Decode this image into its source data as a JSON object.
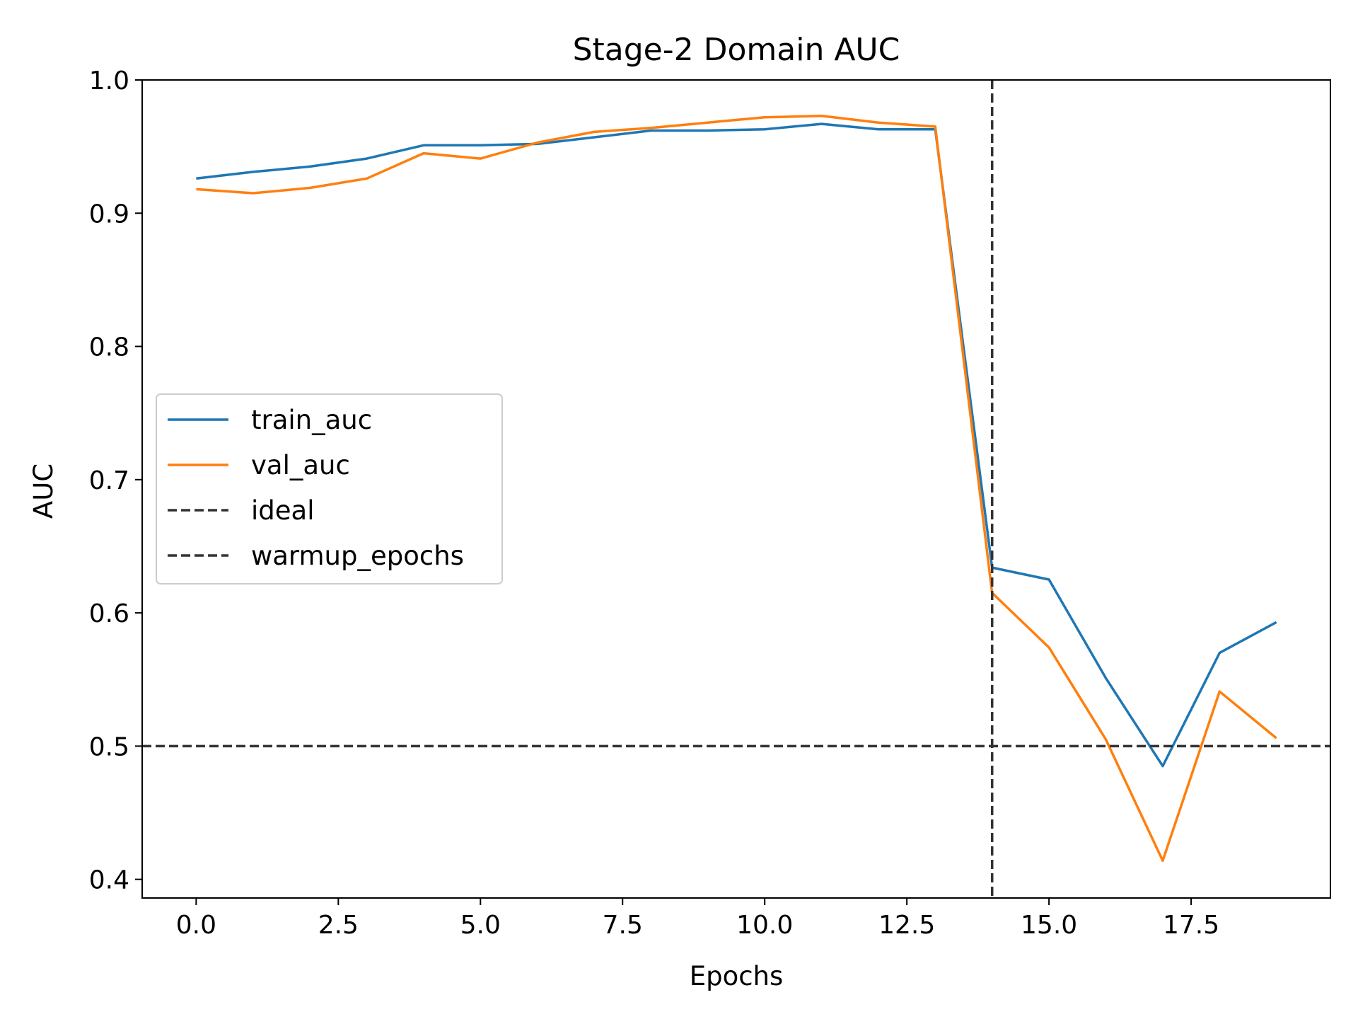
{
  "chart_data": {
    "type": "line",
    "title": "Stage-2 Domain AUC",
    "xlabel": "Epochs",
    "ylabel": "AUC",
    "xlim": [
      -0.95,
      19.95
    ],
    "ylim": [
      0.386,
      1.0
    ],
    "xticks": [
      0,
      2.5,
      5,
      7.5,
      10,
      12.5,
      15,
      17.5
    ],
    "xtick_labels": [
      "0.0",
      "2.5",
      "5.0",
      "7.5",
      "10.0",
      "12.5",
      "15.0",
      "17.5"
    ],
    "yticks": [
      0.4,
      0.5,
      0.6,
      0.7,
      0.8,
      0.9,
      1.0
    ],
    "ytick_labels": [
      "0.4",
      "0.5",
      "0.6",
      "0.7",
      "0.8",
      "0.9",
      "1.0"
    ],
    "grid": false,
    "legend_position": "center-left",
    "x": [
      0,
      1,
      2,
      3,
      4,
      5,
      6,
      7,
      8,
      9,
      10,
      11,
      12,
      13,
      14,
      15,
      16,
      17,
      18,
      19
    ],
    "series": [
      {
        "name": "train_auc",
        "color": "#1f77b4",
        "values": [
          0.926,
          0.931,
          0.935,
          0.941,
          0.951,
          0.951,
          0.952,
          0.957,
          0.962,
          0.962,
          0.963,
          0.967,
          0.963,
          0.963,
          0.634,
          0.625,
          0.551,
          0.485,
          0.57,
          0.593
        ]
      },
      {
        "name": "val_auc",
        "color": "#ff7f0e",
        "values": [
          0.918,
          0.915,
          0.919,
          0.926,
          0.945,
          0.941,
          0.953,
          0.961,
          0.964,
          0.968,
          0.972,
          0.973,
          0.968,
          0.965,
          0.615,
          0.574,
          0.505,
          0.414,
          0.541,
          0.506
        ]
      }
    ],
    "reference_lines": [
      {
        "name": "ideal",
        "orientation": "horizontal",
        "value": 0.5,
        "color": "#333333",
        "style": "dashed"
      },
      {
        "name": "warmup_epochs",
        "orientation": "vertical",
        "value": 14,
        "color": "#333333",
        "style": "dashed"
      }
    ]
  }
}
